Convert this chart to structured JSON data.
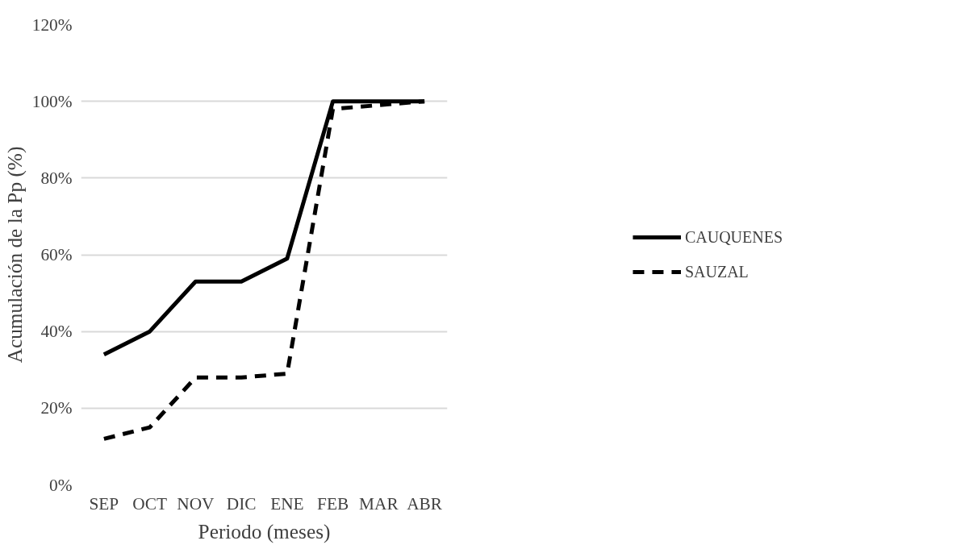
{
  "chart_data": {
    "type": "line",
    "xlabel": "Periodo (meses)",
    "ylabel": "Acumulación de la Pp (%)",
    "categories": [
      "SEP",
      "OCT",
      "NOV",
      "DIC",
      "ENE",
      "FEB",
      "MAR",
      "ABR"
    ],
    "series": [
      {
        "name": "CAUQUENES",
        "color": "#000000",
        "line_style": "solid",
        "values": [
          34,
          40,
          53,
          53,
          59,
          100,
          100,
          100
        ]
      },
      {
        "name": "SAUZAL",
        "color": "#000000",
        "line_style": "dashed",
        "values": [
          12,
          15,
          28,
          28,
          29,
          98,
          99,
          100
        ]
      }
    ],
    "ylim": [
      0,
      120
    ],
    "yticks": [
      {
        "value": 0,
        "label": "0%"
      },
      {
        "value": 20,
        "label": "20%"
      },
      {
        "value": 40,
        "label": "40%"
      },
      {
        "value": 60,
        "label": "60%"
      },
      {
        "value": 80,
        "label": "80%"
      },
      {
        "value": 100,
        "label": "100%"
      },
      {
        "value": 120,
        "label": "120%"
      }
    ],
    "grid": "y",
    "legend": "right",
    "marker": "none"
  }
}
